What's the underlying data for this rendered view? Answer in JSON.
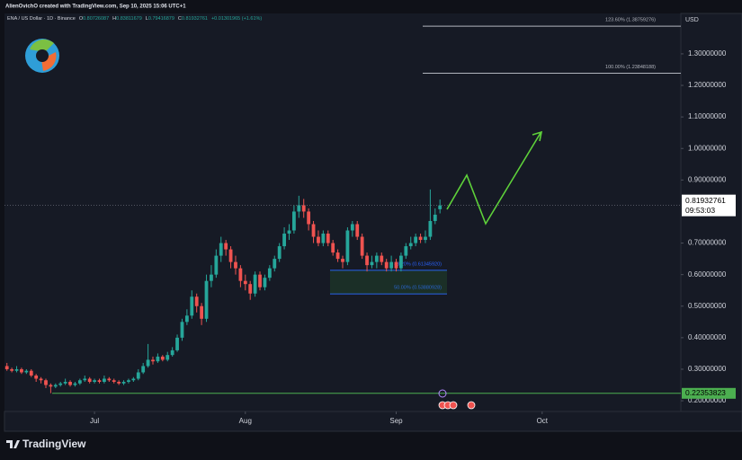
{
  "chart_data": {
    "type": "candlestick",
    "header": "AlienOvichO created with TradingView.com, Sep 10, 2025 15:06 UTC+1",
    "legend": {
      "symbol": "ENA / US Dollar · 1D · Binance",
      "labels": [
        "O",
        "H",
        "L",
        "C"
      ],
      "change": "+0.01301965 (+1.61%)"
    },
    "currency": "USD",
    "countdown": "09:53:03",
    "brand": "TradingView",
    "up_color": "#26a69a",
    "down_color": "#ef5350",
    "xlim": [
      -0.5,
      138.5
    ],
    "xticks": [
      {
        "value": 18,
        "label": "Jul"
      },
      {
        "value": 49,
        "label": "Aug"
      },
      {
        "value": 80,
        "label": "Sep"
      },
      {
        "value": 110,
        "label": "Oct"
      }
    ],
    "ylim": [
      0.166,
      1.428
    ],
    "yticks": [
      {
        "value": 0.2,
        "label": "0.20000000"
      },
      {
        "value": 0.3,
        "label": "0.30000000"
      },
      {
        "value": 0.4,
        "label": "0.40000000"
      },
      {
        "value": 0.5,
        "label": "0.50000000"
      },
      {
        "value": 0.6,
        "label": "0.60000000"
      },
      {
        "value": 0.7,
        "label": "0.70000000"
      },
      {
        "value": 0.9,
        "label": "0.90000000"
      },
      {
        "value": 1.0,
        "label": "1.00000000"
      },
      {
        "value": 1.1,
        "label": "1.10000000"
      },
      {
        "value": 1.2,
        "label": "1.20000000"
      },
      {
        "value": 1.3,
        "label": "1.30000000"
      }
    ],
    "open": [
      0.31,
      0.3,
      0.295,
      0.3,
      0.29,
      0.295,
      0.28,
      0.27,
      0.265,
      0.25,
      0.245,
      0.25,
      0.255,
      0.26,
      0.25,
      0.255,
      0.265,
      0.27,
      0.26,
      0.265,
      0.26,
      0.27,
      0.265,
      0.26,
      0.255,
      0.26,
      0.265,
      0.27,
      0.29,
      0.31,
      0.33,
      0.325,
      0.34,
      0.33,
      0.345,
      0.36,
      0.4,
      0.45,
      0.47,
      0.53,
      0.5,
      0.46,
      0.58,
      0.6,
      0.66,
      0.7,
      0.68,
      0.64,
      0.62,
      0.58,
      0.57,
      0.54,
      0.6,
      0.56,
      0.59,
      0.62,
      0.65,
      0.69,
      0.73,
      0.74,
      0.8,
      0.82,
      0.8,
      0.76,
      0.72,
      0.7,
      0.73,
      0.7,
      0.67,
      0.65,
      0.64,
      0.74,
      0.76,
      0.72,
      0.66,
      0.63,
      0.64,
      0.66,
      0.64,
      0.62,
      0.64,
      0.62,
      0.66,
      0.69,
      0.7,
      0.72,
      0.71,
      0.72,
      0.77,
      0.80726087
    ],
    "high": [
      0.32,
      0.305,
      0.31,
      0.305,
      0.3,
      0.3,
      0.285,
      0.275,
      0.27,
      0.255,
      0.255,
      0.26,
      0.27,
      0.265,
      0.26,
      0.27,
      0.28,
      0.275,
      0.27,
      0.27,
      0.28,
      0.275,
      0.27,
      0.265,
      0.265,
      0.27,
      0.275,
      0.3,
      0.32,
      0.38,
      0.34,
      0.35,
      0.345,
      0.355,
      0.37,
      0.41,
      0.46,
      0.49,
      0.55,
      0.54,
      0.51,
      0.6,
      0.63,
      0.68,
      0.72,
      0.71,
      0.69,
      0.66,
      0.63,
      0.6,
      0.58,
      0.61,
      0.61,
      0.6,
      0.63,
      0.66,
      0.7,
      0.75,
      0.76,
      0.82,
      0.85,
      0.84,
      0.81,
      0.77,
      0.74,
      0.74,
      0.74,
      0.71,
      0.68,
      0.66,
      0.75,
      0.77,
      0.77,
      0.73,
      0.67,
      0.66,
      0.67,
      0.67,
      0.65,
      0.66,
      0.65,
      0.67,
      0.7,
      0.72,
      0.73,
      0.73,
      0.74,
      0.87,
      0.81,
      0.83811679
    ],
    "low": [
      0.295,
      0.29,
      0.29,
      0.285,
      0.285,
      0.275,
      0.26,
      0.255,
      0.24,
      0.224,
      0.24,
      0.245,
      0.25,
      0.245,
      0.245,
      0.25,
      0.26,
      0.255,
      0.255,
      0.255,
      0.255,
      0.26,
      0.255,
      0.25,
      0.25,
      0.255,
      0.26,
      0.265,
      0.285,
      0.305,
      0.315,
      0.32,
      0.325,
      0.325,
      0.34,
      0.355,
      0.39,
      0.44,
      0.46,
      0.48,
      0.44,
      0.45,
      0.56,
      0.59,
      0.64,
      0.66,
      0.62,
      0.6,
      0.56,
      0.55,
      0.52,
      0.53,
      0.55,
      0.55,
      0.58,
      0.61,
      0.64,
      0.68,
      0.71,
      0.73,
      0.78,
      0.78,
      0.74,
      0.7,
      0.69,
      0.69,
      0.69,
      0.66,
      0.64,
      0.62,
      0.63,
      0.72,
      0.71,
      0.65,
      0.61,
      0.62,
      0.62,
      0.63,
      0.61,
      0.61,
      0.61,
      0.61,
      0.65,
      0.68,
      0.69,
      0.7,
      0.7,
      0.71,
      0.76,
      0.79416879
    ],
    "close": [
      0.3,
      0.295,
      0.3,
      0.29,
      0.295,
      0.28,
      0.27,
      0.265,
      0.25,
      0.245,
      0.25,
      0.255,
      0.26,
      0.25,
      0.255,
      0.265,
      0.27,
      0.26,
      0.265,
      0.26,
      0.27,
      0.265,
      0.26,
      0.255,
      0.26,
      0.265,
      0.27,
      0.29,
      0.31,
      0.33,
      0.325,
      0.34,
      0.33,
      0.345,
      0.36,
      0.4,
      0.45,
      0.47,
      0.53,
      0.5,
      0.46,
      0.58,
      0.6,
      0.66,
      0.7,
      0.68,
      0.64,
      0.62,
      0.58,
      0.57,
      0.54,
      0.6,
      0.56,
      0.59,
      0.62,
      0.65,
      0.69,
      0.73,
      0.74,
      0.8,
      0.82,
      0.8,
      0.76,
      0.72,
      0.7,
      0.73,
      0.7,
      0.67,
      0.65,
      0.64,
      0.74,
      0.76,
      0.72,
      0.66,
      0.63,
      0.64,
      0.66,
      0.64,
      0.62,
      0.64,
      0.62,
      0.66,
      0.69,
      0.7,
      0.72,
      0.71,
      0.72,
      0.77,
      0.79,
      0.81932761
    ],
    "fib_levels": [
      {
        "label": "123.60% (1.38759276)",
        "value": 1.38759276
      },
      {
        "label": "100.00% (1.23848188)",
        "value": 1.23848188
      },
      {
        "label": "38.20% (0.61345920)",
        "value": 0.6134592
      },
      {
        "label": "50.00% (0.53880928)",
        "value": 0.53880928
      }
    ],
    "support_level": 0.22353823
  }
}
